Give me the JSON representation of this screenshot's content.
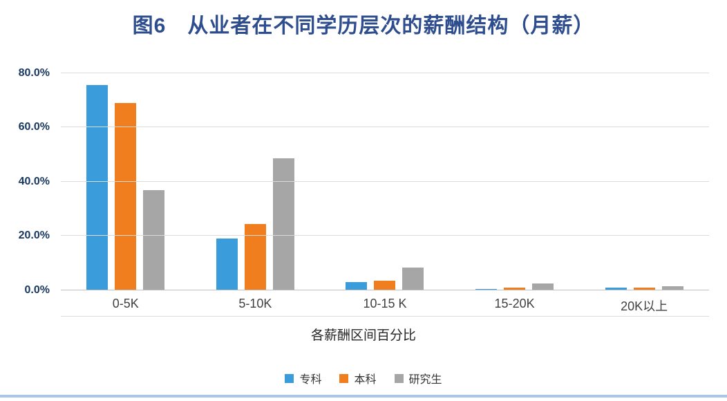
{
  "chart_data": {
    "type": "bar",
    "title": "图6　从业者在不同学历层次的薪酬结构（月薪）",
    "xlabel": "各薪酬区间百分比",
    "ylabel": "",
    "categories": [
      "0-5K",
      "5-10K",
      "10-15 K",
      "15-20K",
      "20K以上"
    ],
    "series": [
      {
        "name": "专科",
        "color": "#3B9CDB",
        "values": [
          75.5,
          19.0,
          3.0,
          0.5,
          1.0
        ]
      },
      {
        "name": "本科",
        "color": "#F07D1E",
        "values": [
          69.0,
          24.5,
          3.5,
          1.0,
          1.0
        ]
      },
      {
        "name": "研究生",
        "color": "#A6A6A6",
        "values": [
          37.0,
          48.5,
          8.5,
          2.5,
          1.5
        ]
      }
    ],
    "ylim": [
      0,
      86
    ],
    "yticks": [
      0,
      20,
      40,
      60,
      80
    ],
    "ytick_labels": [
      "0.0%",
      "20.0%",
      "40.0%",
      "60.0%",
      "80.0%"
    ],
    "grid": true,
    "legend_position": "bottom",
    "colors": {
      "title_text": "#2E4D8E",
      "axis_tick_text": "#17375E",
      "gridline": "#DBDBDB",
      "bottom_strip": "#A9C7E9"
    }
  }
}
